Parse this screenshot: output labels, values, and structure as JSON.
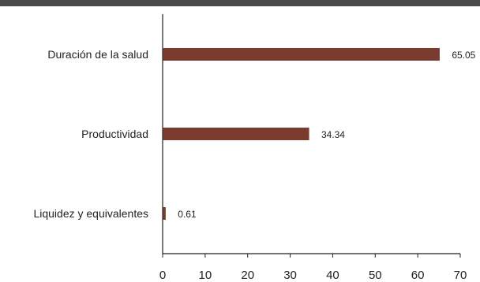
{
  "chart_data": {
    "type": "bar",
    "orientation": "horizontal",
    "categories": [
      "Duración de la salud",
      "Productividad",
      "Liquidez y equivalentes"
    ],
    "values": [
      65.05,
      34.34,
      0.61
    ],
    "value_labels": [
      "65.05",
      "34.34",
      "0.61"
    ],
    "xlim": [
      0,
      70
    ],
    "ticks": [
      0,
      10,
      20,
      30,
      40,
      50,
      60,
      70
    ],
    "tick_labels": [
      "0",
      "10",
      "20",
      "30",
      "40",
      "50",
      "60",
      "70"
    ],
    "bar_color": "#7b3b2e",
    "axis_color": "#222222",
    "header_band_color": "#4a4a4a",
    "grid": false,
    "legend": "none"
  }
}
